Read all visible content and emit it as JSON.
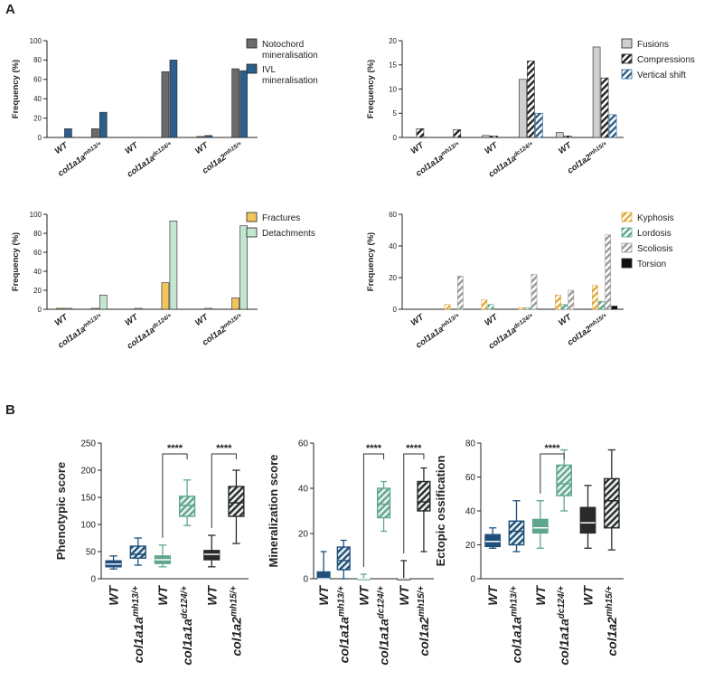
{
  "panel_labels": [
    "A",
    "B"
  ],
  "chart_data": [
    {
      "id": "A1",
      "type": "bar",
      "categories": [
        "WT",
        "col1a1a^mh13/+",
        "WT",
        "col1a1a^dc124/+",
        "WT",
        "col1a2^mh15/+"
      ],
      "series": [
        {
          "name": "Notochord mineralisation",
          "color": "#6b6b6b",
          "pattern": "solid",
          "values": [
            0,
            9,
            0,
            68,
            1,
            71
          ]
        },
        {
          "name": "IVL mineralisation",
          "color": "#2d5f8a",
          "pattern": "solid",
          "values": [
            9,
            26,
            0,
            80,
            2,
            69
          ]
        }
      ],
      "ylabel": "Frequency (%)",
      "ylim": [
        0,
        100
      ],
      "yticks": [
        0,
        20,
        40,
        60,
        80,
        100
      ],
      "legend": "right"
    },
    {
      "id": "A2",
      "type": "bar",
      "categories": [
        "WT",
        "col1a1a^mh13/+",
        "WT",
        "col1a1a^dc124/+",
        "WT",
        "col1a2^mh15/+"
      ],
      "series": [
        {
          "name": "Fusions",
          "color": "#cfcfcf",
          "pattern": "solid",
          "values": [
            0,
            0,
            0.4,
            12,
            1,
            18.7
          ]
        },
        {
          "name": "Compressions",
          "color": "#222222",
          "pattern": "hatch",
          "values": [
            1.8,
            1.6,
            0.3,
            15.8,
            0.3,
            12.3
          ]
        },
        {
          "name": "Vertical shift",
          "color": "#2d5f8a",
          "pattern": "hatch",
          "values": [
            0,
            0,
            0,
            5,
            0,
            4.7
          ]
        }
      ],
      "ylabel": "Frequency (%)",
      "ylim": [
        0,
        20
      ],
      "yticks": [
        0,
        5,
        10,
        15,
        20
      ],
      "legend": "right"
    },
    {
      "id": "A3",
      "type": "bar",
      "categories": [
        "WT",
        "col1a1a^mh13/+",
        "WT",
        "col1a1a^dc124/+",
        "WT",
        "col1a2^mh15/+"
      ],
      "series": [
        {
          "name": "Fractures",
          "color": "#f2c55c",
          "pattern": "solid",
          "values": [
            1,
            1,
            0,
            28,
            0,
            12
          ]
        },
        {
          "name": "Detachments",
          "color": "#c3e6d1",
          "pattern": "solid",
          "values": [
            1,
            15,
            1,
            93,
            1,
            88
          ]
        }
      ],
      "ylabel": "Frequency (%)",
      "ylim": [
        0,
        100
      ],
      "yticks": [
        0,
        20,
        40,
        60,
        80,
        100
      ],
      "legend": "right"
    },
    {
      "id": "A4",
      "type": "bar",
      "categories": [
        "WT",
        "col1a1a^mh13/+",
        "WT",
        "col1a1a^dc124/+",
        "WT",
        "col1a2^mh15/+"
      ],
      "series": [
        {
          "name": "Kyphosis",
          "color": "#e0a93c",
          "pattern": "hatch",
          "values": [
            0,
            3,
            6,
            1,
            9,
            15
          ]
        },
        {
          "name": "Lordosis",
          "color": "#5aa58f",
          "pattern": "hatch",
          "values": [
            0,
            0,
            3,
            1,
            3,
            5
          ]
        },
        {
          "name": "Scoliosis",
          "color": "#9a9a9a",
          "pattern": "hatch",
          "values": [
            0,
            21,
            0,
            22,
            12,
            47
          ]
        },
        {
          "name": "Torsion",
          "color": "#111111",
          "pattern": "solid",
          "values": [
            0,
            0,
            0,
            0,
            0,
            2
          ]
        }
      ],
      "ylabel": "Frequency (%)",
      "ylim": [
        0,
        60
      ],
      "yticks": [
        0,
        20,
        40,
        60
      ],
      "legend": "right"
    },
    {
      "id": "B1",
      "type": "boxplot",
      "categories": [
        "WT",
        "col1a1a^mh13/+",
        "WT",
        "col1a1a^dc124/+",
        "WT",
        "col1a2^mh15/+"
      ],
      "boxes": [
        {
          "min": 18,
          "q1": 22,
          "median": 27,
          "q3": 33,
          "max": 42,
          "color": "#1f4f7a",
          "pattern": "solid"
        },
        {
          "min": 25,
          "q1": 38,
          "median": 45,
          "q3": 60,
          "max": 75,
          "color": "#1f4f7a",
          "pattern": "hatch"
        },
        {
          "min": 22,
          "q1": 28,
          "median": 35,
          "q3": 42,
          "max": 62,
          "color": "#5fa68c",
          "pattern": "solid"
        },
        {
          "min": 98,
          "q1": 115,
          "median": 135,
          "q3": 152,
          "max": 182,
          "color": "#5fa68c",
          "pattern": "hatch"
        },
        {
          "min": 22,
          "q1": 35,
          "median": 45,
          "q3": 52,
          "max": 80,
          "color": "#2a2a2a",
          "pattern": "solid"
        },
        {
          "min": 65,
          "q1": 115,
          "median": 140,
          "q3": 170,
          "max": 200,
          "color": "#2a2a2a",
          "pattern": "hatch"
        }
      ],
      "ylabel": "Phenotypic score",
      "ylim": [
        0,
        250
      ],
      "yticks": [
        0,
        50,
        100,
        150,
        200,
        250
      ],
      "significance": [
        {
          "from": 2,
          "to": 3,
          "label": "****"
        },
        {
          "from": 4,
          "to": 5,
          "label": "****"
        }
      ]
    },
    {
      "id": "B2",
      "type": "boxplot",
      "categories": [
        "WT",
        "col1a1a^mh13/+",
        "WT",
        "col1a1a^dc124/+",
        "WT",
        "col1a2^mh15/+"
      ],
      "boxes": [
        {
          "min": 0,
          "q1": 0,
          "median": 0,
          "q3": 3,
          "max": 12,
          "color": "#1f4f7a",
          "pattern": "solid"
        },
        {
          "min": 0,
          "q1": 4,
          "median": 8,
          "q3": 14,
          "max": 17,
          "color": "#1f4f7a",
          "pattern": "hatch"
        },
        {
          "min": 0,
          "q1": 0,
          "median": 0,
          "q3": 0,
          "max": 2,
          "color": "#5fa68c",
          "pattern": "solid"
        },
        {
          "min": 21,
          "q1": 27,
          "median": 33,
          "q3": 40,
          "max": 43,
          "color": "#5fa68c",
          "pattern": "hatch"
        },
        {
          "min": 0,
          "q1": 0,
          "median": 0,
          "q3": 0,
          "max": 8,
          "color": "#2a2a2a",
          "pattern": "solid"
        },
        {
          "min": 12,
          "q1": 30,
          "median": 34,
          "q3": 43,
          "max": 49,
          "color": "#2a2a2a",
          "pattern": "hatch"
        }
      ],
      "ylabel": "Mineralization score",
      "ylim": [
        0,
        60
      ],
      "yticks": [
        0,
        20,
        40,
        60
      ],
      "significance": [
        {
          "from": 2,
          "to": 3,
          "label": "****"
        },
        {
          "from": 4,
          "to": 5,
          "label": "****"
        }
      ]
    },
    {
      "id": "B3",
      "type": "boxplot",
      "categories": [
        "WT",
        "col1a1a^mh13/+",
        "WT",
        "col1a1a^dc124/+",
        "WT",
        "col1a2^mh15/+"
      ],
      "boxes": [
        {
          "min": 18,
          "q1": 19,
          "median": 22,
          "q3": 26,
          "max": 30,
          "color": "#1f4f7a",
          "pattern": "solid"
        },
        {
          "min": 16,
          "q1": 20,
          "median": 28,
          "q3": 34,
          "max": 46,
          "color": "#1f4f7a",
          "pattern": "hatch"
        },
        {
          "min": 18,
          "q1": 27,
          "median": 30,
          "q3": 35,
          "max": 46,
          "color": "#5fa68c",
          "pattern": "solid"
        },
        {
          "min": 40,
          "q1": 49,
          "median": 56,
          "q3": 67,
          "max": 76,
          "color": "#5fa68c",
          "pattern": "hatch"
        },
        {
          "min": 18,
          "q1": 27,
          "median": 33,
          "q3": 42,
          "max": 55,
          "color": "#2a2a2a",
          "pattern": "solid"
        },
        {
          "min": 17,
          "q1": 30,
          "median": 46,
          "q3": 59,
          "max": 76,
          "color": "#2a2a2a",
          "pattern": "hatch"
        }
      ],
      "ylabel": "Ectopic ossification",
      "ylim": [
        0,
        80
      ],
      "yticks": [
        0,
        20,
        40,
        60,
        80
      ],
      "significance": [
        {
          "from": 2,
          "to": 3,
          "label": "****"
        }
      ]
    }
  ]
}
